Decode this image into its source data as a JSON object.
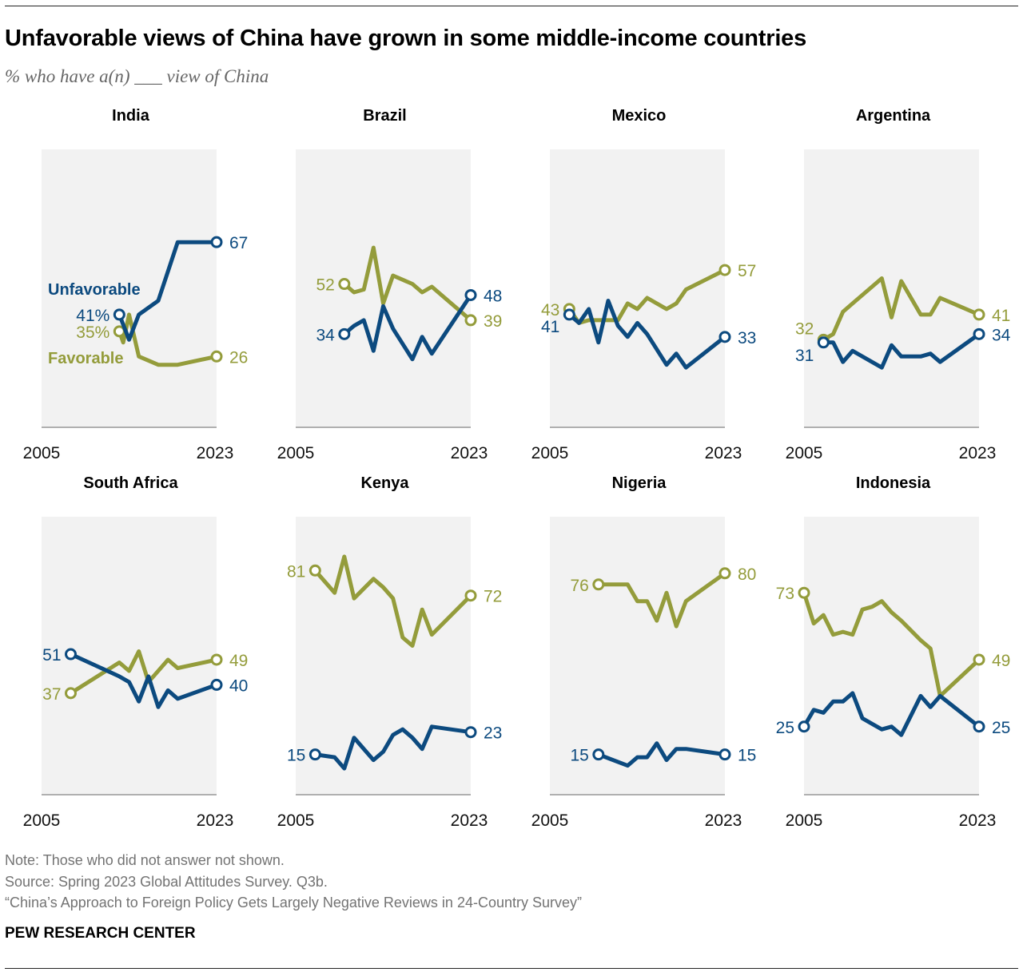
{
  "title": "Unfavorable views of China have grown in some middle-income countries",
  "subtitle": "% who have a(n) ___ view of China",
  "notes": {
    "note": "Note: Those who did not answer not shown.",
    "source": "Source: Spring 2023 Global Attitudes Survey. Q3b.",
    "report": "“China’s Approach to Foreign Policy Gets Largely Negative Reviews in 24-Country Survey”"
  },
  "brand": "PEW RESEARCH CENTER",
  "colors": {
    "unfavorable": "#0c4a7f",
    "favorable": "#949c3b",
    "panel_bg": "#f2f2f2",
    "axis": "#b0b0b0"
  },
  "chart_data": {
    "type": "line",
    "small_multiples": true,
    "xlim": [
      2005,
      2023
    ],
    "ylim": [
      0,
      100
    ],
    "x_tick_labels": [
      "2005",
      "2023"
    ],
    "legend_labels": {
      "unfavorable": "Unfavorable",
      "favorable": "Favorable"
    },
    "panels": [
      {
        "country": "India",
        "series": [
          {
            "name": "Unfavorable",
            "key": "unfavorable",
            "start_label": "41%",
            "end_label": "67",
            "x": [
              2013,
              2014,
              2015,
              2017,
              2019,
              2023
            ],
            "y": [
              41,
              32,
              41,
              46,
              67,
              67
            ]
          },
          {
            "name": "Favorable",
            "key": "favorable",
            "start_label": "35%",
            "end_label": "26",
            "x": [
              2013,
              2013.4,
              2014,
              2015,
              2017,
              2019,
              2023
            ],
            "y": [
              35,
              31,
              41,
              26,
              23,
              23,
              26
            ]
          }
        ]
      },
      {
        "country": "Brazil",
        "series": [
          {
            "name": "Unfavorable",
            "key": "unfavorable",
            "start_label": "34",
            "end_label": "48",
            "x": [
              2010,
              2011,
              2012,
              2013,
              2014,
              2015,
              2017,
              2018,
              2019,
              2023
            ],
            "y": [
              34,
              37,
              39,
              28,
              44,
              36,
              25,
              33,
              27,
              48
            ]
          },
          {
            "name": "Favorable",
            "key": "favorable",
            "start_label": "52",
            "end_label": "39",
            "x": [
              2010,
              2011,
              2012,
              2013,
              2014,
              2015,
              2017,
              2018,
              2019,
              2023
            ],
            "y": [
              52,
              49,
              50,
              65,
              45,
              55,
              52,
              49,
              51,
              39
            ]
          }
        ]
      },
      {
        "country": "Mexico",
        "series": [
          {
            "name": "Unfavorable",
            "key": "unfavorable",
            "start_label": "41",
            "end_label": "33",
            "x": [
              2007,
              2008,
              2009,
              2010,
              2011,
              2012,
              2013,
              2014,
              2015,
              2017,
              2018,
              2019,
              2023
            ],
            "y": [
              41,
              38,
              43,
              31,
              46,
              37,
              33,
              38,
              34,
              23,
              27,
              22,
              33
            ]
          },
          {
            "name": "Favorable",
            "key": "favorable",
            "start_label": "43",
            "end_label": "57",
            "x": [
              2007,
              2008,
              2009,
              2010,
              2011,
              2012,
              2013,
              2014,
              2015,
              2017,
              2018,
              2019,
              2023
            ],
            "y": [
              43,
              38,
              39,
              39,
              39,
              39,
              45,
              43,
              47,
              43,
              45,
              50,
              57
            ]
          }
        ]
      },
      {
        "country": "Argentina",
        "series": [
          {
            "name": "Unfavorable",
            "key": "unfavorable",
            "start_label": "31",
            "end_label": "34",
            "x": [
              2007,
              2008,
              2009,
              2010,
              2013,
              2014,
              2015,
              2017,
              2018,
              2019,
              2023
            ],
            "y": [
              31,
              31,
              24,
              28,
              22,
              30,
              26,
              26,
              27,
              24,
              34
            ]
          },
          {
            "name": "Favorable",
            "key": "favorable",
            "start_label": "32",
            "end_label": "41",
            "x": [
              2007,
              2008,
              2009,
              2010,
              2013,
              2014,
              2015,
              2017,
              2018,
              2019,
              2023
            ],
            "y": [
              32,
              34,
              42,
              45,
              54,
              40,
              53,
              41,
              41,
              47,
              41
            ]
          }
        ]
      },
      {
        "country": "South Africa",
        "series": [
          {
            "name": "Unfavorable",
            "key": "unfavorable",
            "start_label": "51",
            "end_label": "40",
            "x": [
              2008,
              2013,
              2014,
              2015,
              2016,
              2017,
              2018,
              2019,
              2023
            ],
            "y": [
              51,
              43,
              41,
              34,
              43,
              32,
              38,
              35,
              40
            ]
          },
          {
            "name": "Favorable",
            "key": "favorable",
            "start_label": "37",
            "end_label": "49",
            "x": [
              2008,
              2013,
              2014,
              2015,
              2016,
              2017,
              2018,
              2019,
              2023
            ],
            "y": [
              37,
              48,
              45,
              52,
              41,
              45,
              49,
              46,
              49
            ]
          }
        ]
      },
      {
        "country": "Kenya",
        "series": [
          {
            "name": "Unfavorable",
            "key": "unfavorable",
            "start_label": "15",
            "end_label": "23",
            "x": [
              2007,
              2009,
              2010,
              2011,
              2013,
              2014,
              2015,
              2016,
              2017,
              2018,
              2019,
              2023
            ],
            "y": [
              15,
              14,
              10,
              21,
              13,
              16,
              22,
              24,
              21,
              17,
              25,
              23
            ]
          },
          {
            "name": "Favorable",
            "key": "favorable",
            "start_label": "81",
            "end_label": "72",
            "x": [
              2007,
              2009,
              2010,
              2011,
              2013,
              2014,
              2015,
              2016,
              2017,
              2018,
              2019,
              2023
            ],
            "y": [
              81,
              73,
              86,
              71,
              78,
              75,
              71,
              57,
              54,
              67,
              58,
              72
            ]
          }
        ]
      },
      {
        "country": "Nigeria",
        "series": [
          {
            "name": "Unfavorable",
            "key": "unfavorable",
            "start_label": "15",
            "end_label": "15",
            "x": [
              2010,
              2013,
              2014,
              2015,
              2016,
              2017,
              2018,
              2019,
              2023
            ],
            "y": [
              15,
              11,
              14,
              14,
              19,
              13,
              17,
              17,
              15
            ]
          },
          {
            "name": "Favorable",
            "key": "favorable",
            "start_label": "76",
            "end_label": "80",
            "x": [
              2010,
              2013,
              2014,
              2015,
              2016,
              2017,
              2018,
              2019,
              2023
            ],
            "y": [
              76,
              76,
              70,
              70,
              63,
              73,
              61,
              70,
              80
            ]
          }
        ]
      },
      {
        "country": "Indonesia",
        "series": [
          {
            "name": "Unfavorable",
            "key": "unfavorable",
            "start_label": "25",
            "end_label": "25",
            "x": [
              2005,
              2006,
              2007,
              2008,
              2009,
              2010,
              2011,
              2012,
              2013,
              2014,
              2015,
              2017,
              2018,
              2019,
              2023
            ],
            "y": [
              25,
              31,
              30,
              34,
              34,
              37,
              28,
              26,
              24,
              25,
              22,
              36,
              32,
              36,
              25
            ]
          },
          {
            "name": "Favorable",
            "key": "favorable",
            "start_label": "73",
            "end_label": "49",
            "x": [
              2005,
              2006,
              2007,
              2008,
              2009,
              2010,
              2011,
              2012,
              2013,
              2014,
              2015,
              2017,
              2018,
              2019,
              2023
            ],
            "y": [
              73,
              62,
              65,
              58,
              59,
              58,
              67,
              68,
              70,
              66,
              63,
              56,
              53,
              36,
              49
            ]
          }
        ]
      }
    ]
  }
}
